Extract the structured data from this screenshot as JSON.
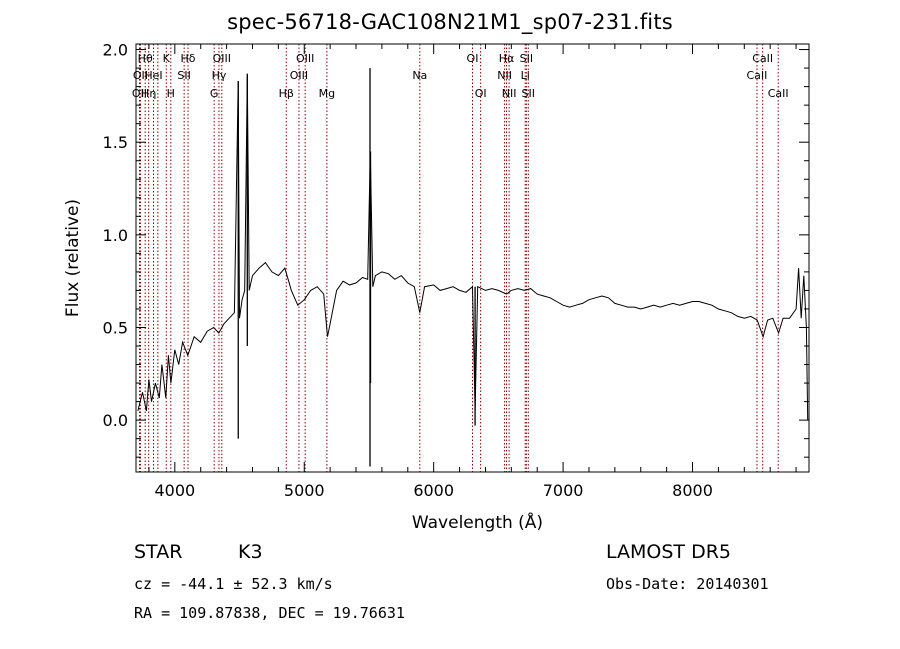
{
  "chart_data": {
    "type": "line",
    "title": "spec-56718-GAC108N21M1_sp07-231.fits",
    "xlabel": "Wavelength (Å)",
    "ylabel": "Flux (relative)",
    "xlim": [
      3700,
      8900
    ],
    "ylim": [
      -0.28,
      2.03
    ],
    "xticks": [
      4000,
      5000,
      6000,
      7000,
      8000
    ],
    "xtick_labels": [
      "4000",
      "5000",
      "6000",
      "7000",
      "8000"
    ],
    "yticks": [
      0.0,
      0.5,
      1.0,
      1.5,
      2.0
    ],
    "ytick_labels": [
      "0.0",
      "0.5",
      "1.0",
      "1.5",
      "2.0"
    ],
    "line_color": "#000000",
    "marker_color": "#8b0000",
    "grid": false,
    "series": [
      {
        "values": [
          [
            3715,
            0.05
          ],
          [
            3750,
            0.15
          ],
          [
            3780,
            0.05
          ],
          [
            3800,
            0.22
          ],
          [
            3820,
            0.1
          ],
          [
            3850,
            0.2
          ],
          [
            3880,
            0.12
          ],
          [
            3900,
            0.3
          ],
          [
            3930,
            0.12
          ],
          [
            3950,
            0.35
          ],
          [
            3970,
            0.2
          ],
          [
            4000,
            0.38
          ],
          [
            4030,
            0.3
          ],
          [
            4060,
            0.42
          ],
          [
            4100,
            0.35
          ],
          [
            4150,
            0.45
          ],
          [
            4200,
            0.42
          ],
          [
            4250,
            0.48
          ],
          [
            4300,
            0.5
          ],
          [
            4340,
            0.47
          ],
          [
            4380,
            0.52
          ],
          [
            4420,
            0.55
          ],
          [
            4460,
            0.58
          ],
          [
            4490,
            1.83
          ],
          [
            4500,
            0.55
          ],
          [
            4520,
            0.65
          ],
          [
            4540,
            0.7
          ],
          [
            4560,
            1.86
          ],
          [
            4575,
            0.7
          ],
          [
            4600,
            0.78
          ],
          [
            4650,
            0.82
          ],
          [
            4700,
            0.85
          ],
          [
            4750,
            0.8
          ],
          [
            4800,
            0.78
          ],
          [
            4850,
            0.82
          ],
          [
            4880,
            0.75
          ],
          [
            4900,
            0.7
          ],
          [
            4950,
            0.62
          ],
          [
            5000,
            0.65
          ],
          [
            5050,
            0.7
          ],
          [
            5100,
            0.72
          ],
          [
            5150,
            0.68
          ],
          [
            5180,
            0.45
          ],
          [
            5200,
            0.52
          ],
          [
            5250,
            0.7
          ],
          [
            5300,
            0.75
          ],
          [
            5350,
            0.73
          ],
          [
            5400,
            0.74
          ],
          [
            5450,
            0.77
          ],
          [
            5490,
            0.76
          ],
          [
            5510,
            1.45
          ],
          [
            5530,
            0.72
          ],
          [
            5550,
            0.78
          ],
          [
            5600,
            0.8
          ],
          [
            5650,
            0.79
          ],
          [
            5700,
            0.76
          ],
          [
            5750,
            0.78
          ],
          [
            5800,
            0.74
          ],
          [
            5850,
            0.72
          ],
          [
            5893,
            0.58
          ],
          [
            5930,
            0.72
          ],
          [
            6000,
            0.73
          ],
          [
            6050,
            0.7
          ],
          [
            6100,
            0.71
          ],
          [
            6150,
            0.72
          ],
          [
            6200,
            0.7
          ],
          [
            6250,
            0.69
          ],
          [
            6300,
            0.72
          ],
          [
            6320,
            0.05
          ],
          [
            6340,
            0.72
          ],
          [
            6400,
            0.7
          ],
          [
            6450,
            0.71
          ],
          [
            6500,
            0.7
          ],
          [
            6563,
            0.68
          ],
          [
            6600,
            0.7
          ],
          [
            6650,
            0.71
          ],
          [
            6700,
            0.7
          ],
          [
            6750,
            0.71
          ],
          [
            6800,
            0.68
          ],
          [
            6850,
            0.67
          ],
          [
            6900,
            0.66
          ],
          [
            6950,
            0.64
          ],
          [
            7000,
            0.62
          ],
          [
            7050,
            0.61
          ],
          [
            7100,
            0.62
          ],
          [
            7150,
            0.63
          ],
          [
            7200,
            0.65
          ],
          [
            7250,
            0.66
          ],
          [
            7300,
            0.67
          ],
          [
            7350,
            0.66
          ],
          [
            7400,
            0.63
          ],
          [
            7450,
            0.62
          ],
          [
            7500,
            0.61
          ],
          [
            7550,
            0.61
          ],
          [
            7600,
            0.6
          ],
          [
            7650,
            0.61
          ],
          [
            7700,
            0.62
          ],
          [
            7750,
            0.61
          ],
          [
            7800,
            0.62
          ],
          [
            7850,
            0.63
          ],
          [
            7900,
            0.62
          ],
          [
            7950,
            0.63
          ],
          [
            8000,
            0.64
          ],
          [
            8050,
            0.64
          ],
          [
            8100,
            0.63
          ],
          [
            8150,
            0.62
          ],
          [
            8200,
            0.6
          ],
          [
            8250,
            0.59
          ],
          [
            8300,
            0.58
          ],
          [
            8350,
            0.56
          ],
          [
            8400,
            0.55
          ],
          [
            8450,
            0.56
          ],
          [
            8500,
            0.54
          ],
          [
            8545,
            0.45
          ],
          [
            8580,
            0.54
          ],
          [
            8620,
            0.55
          ],
          [
            8665,
            0.47
          ],
          [
            8700,
            0.55
          ],
          [
            8750,
            0.55
          ],
          [
            8800,
            0.6
          ],
          [
            8820,
            0.82
          ],
          [
            8840,
            0.55
          ],
          [
            8860,
            0.78
          ],
          [
            8880,
            0.5
          ],
          [
            8890,
            0.0
          ]
        ]
      }
    ],
    "spike_segments": [
      [
        4490,
        -0.1,
        1.83
      ],
      [
        4560,
        0.4,
        1.87
      ],
      [
        5508,
        -0.25,
        1.9
      ],
      [
        5512,
        0.2,
        1.45
      ],
      [
        6320,
        -0.03,
        0.72
      ]
    ],
    "line_markers": [
      {
        "x": 3727,
        "label": "OII",
        "row": 3
      },
      {
        "x": 3734,
        "label": "OII",
        "row": 2
      },
      {
        "x": 3771,
        "label": "Hθ",
        "row": 1
      },
      {
        "x": 3798,
        "label": "Hη",
        "row": 3
      },
      {
        "x": 3835,
        "label": "HeI",
        "row": 2
      },
      {
        "x": 3869,
        "label": "",
        "row": 0
      },
      {
        "x": 3934,
        "label": "K",
        "row": 1
      },
      {
        "x": 3969,
        "label": "H",
        "row": 3
      },
      {
        "x": 4072,
        "label": "SII",
        "row": 2
      },
      {
        "x": 4102,
        "label": "Hδ",
        "row": 1
      },
      {
        "x": 4304,
        "label": "G",
        "row": 3
      },
      {
        "x": 4341,
        "label": "Hγ",
        "row": 2
      },
      {
        "x": 4363,
        "label": "OIII",
        "row": 1
      },
      {
        "x": 4861,
        "label": "Hβ",
        "row": 3
      },
      {
        "x": 4959,
        "label": "OIII",
        "row": 2
      },
      {
        "x": 5007,
        "label": "OIII",
        "row": 1
      },
      {
        "x": 5175,
        "label": "Mg",
        "row": 3
      },
      {
        "x": 5893,
        "label": "Na",
        "row": 2
      },
      {
        "x": 6300,
        "label": "OI",
        "row": 1
      },
      {
        "x": 6363,
        "label": "OI",
        "row": 3
      },
      {
        "x": 6548,
        "label": "NII",
        "row": 2
      },
      {
        "x": 6563,
        "label": "Hα",
        "row": 1
      },
      {
        "x": 6583,
        "label": "NII",
        "row": 3
      },
      {
        "x": 6707,
        "label": "Li",
        "row": 2
      },
      {
        "x": 6716,
        "label": "SII",
        "row": 1
      },
      {
        "x": 6731,
        "label": "SII",
        "row": 3
      },
      {
        "x": 8498,
        "label": "CaII",
        "row": 2
      },
      {
        "x": 8542,
        "label": "CaII",
        "row": 1
      },
      {
        "x": 8662,
        "label": "CaII",
        "row": 3
      }
    ]
  },
  "info": {
    "object_class": "STAR",
    "subclass": "K3",
    "survey": "LAMOST DR5",
    "cz": "cz = -44.1 ± 52.3 km/s",
    "obs_date": "Obs-Date: 20140301",
    "coords": "RA = 109.87838, DEC =  19.76631"
  }
}
